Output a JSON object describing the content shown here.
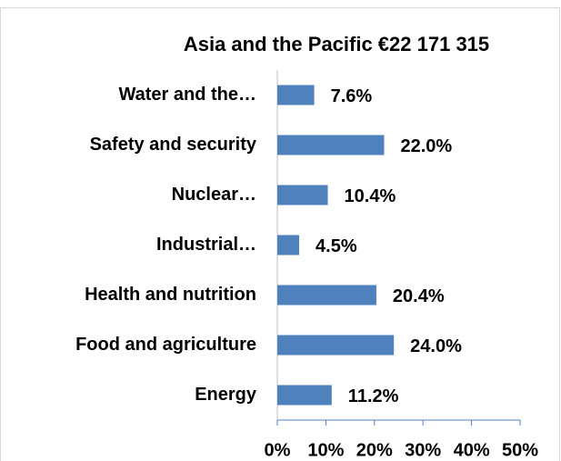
{
  "chart_data": {
    "type": "bar",
    "orientation": "horizontal",
    "title": "Asia and the Pacific €22 171 315",
    "categories": [
      "Water and the…",
      "Safety and security",
      "Nuclear…",
      "Industrial…",
      "Health and nutrition",
      "Food and agriculture",
      "Energy"
    ],
    "values": [
      7.6,
      22.0,
      10.4,
      4.5,
      20.4,
      24.0,
      11.2
    ],
    "value_labels": [
      "7.6%",
      "22.0%",
      "10.4%",
      "4.5%",
      "20.4%",
      "24.0%",
      "11.2%"
    ],
    "color": "#4f81bd",
    "xlim": [
      0,
      50
    ],
    "xticks": [
      {
        "value": 0,
        "label": "0%"
      },
      {
        "value": 10,
        "label": "10%"
      },
      {
        "value": 20,
        "label": "20%"
      },
      {
        "value": 30,
        "label": "30%"
      },
      {
        "value": 40,
        "label": "40%"
      },
      {
        "value": 50,
        "label": "50%"
      }
    ],
    "grid": false
  }
}
